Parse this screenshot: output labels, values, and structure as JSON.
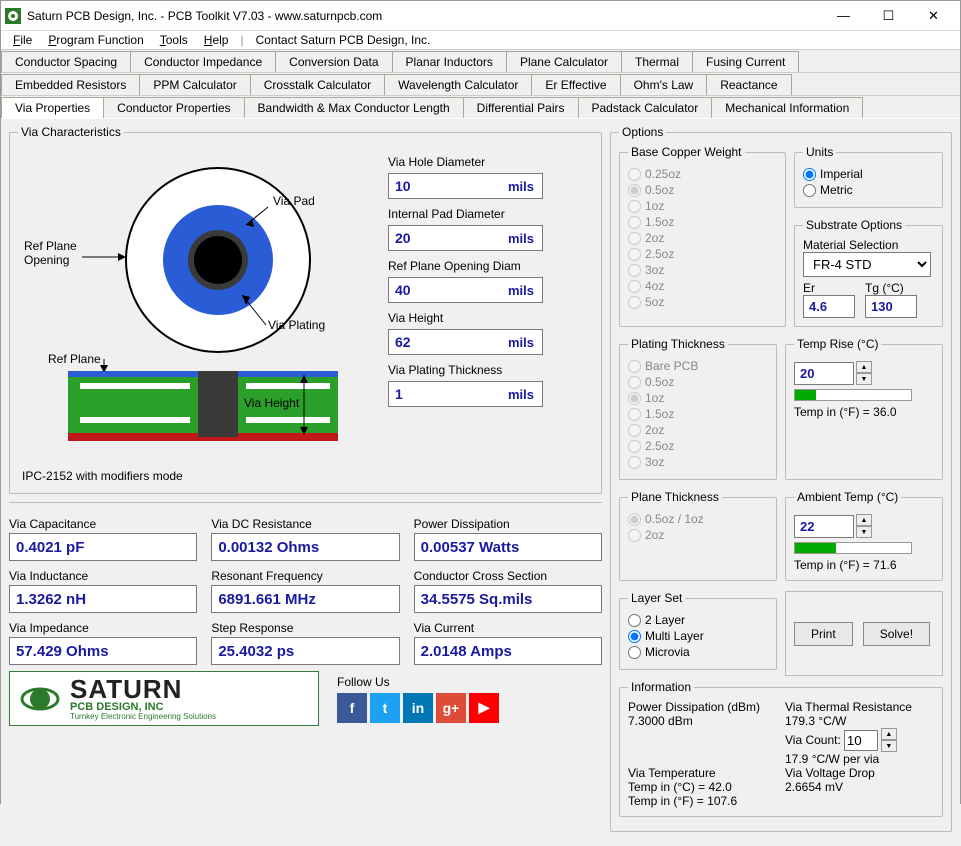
{
  "app": {
    "title": "Saturn PCB Design, Inc. - PCB Toolkit V7.03 - www.saturnpcb.com",
    "menus": [
      "File",
      "Program Function",
      "Tools",
      "Help"
    ],
    "contact": "Contact Saturn PCB Design, Inc."
  },
  "tabs": {
    "row1": [
      "Conductor Spacing",
      "Conductor Impedance",
      "Conversion Data",
      "Planar Inductors",
      "Plane Calculator",
      "Thermal",
      "Fusing Current"
    ],
    "row2": [
      "Embedded Resistors",
      "PPM Calculator",
      "Crosstalk Calculator",
      "Wavelength Calculator",
      "Er Effective",
      "Ohm's Law",
      "Reactance"
    ],
    "row3": [
      "Via Properties",
      "Conductor Properties",
      "Bandwidth & Max Conductor Length",
      "Differential Pairs",
      "Padstack Calculator",
      "Mechanical Information"
    ],
    "active": "Via Properties"
  },
  "characteristics": {
    "legend": "Via Characteristics",
    "diagram": {
      "ref_plane_opening": "Ref Plane\nOpening",
      "via_pad": "Via Pad",
      "via_plating": "Via Plating",
      "ref_plane": "Ref Plane",
      "via_height": "Via Height",
      "colors": {
        "outer": "#ffffff",
        "pad": "#2a5cd6",
        "hole": "#000",
        "board": "#2aa02a",
        "plane": "#c01818"
      }
    },
    "inputs": {
      "via_hole_diameter": {
        "label": "Via Hole Diameter",
        "value": "10",
        "unit": "mils"
      },
      "internal_pad_diameter": {
        "label": "Internal Pad Diameter",
        "value": "20",
        "unit": "mils"
      },
      "ref_plane_opening": {
        "label": "Ref Plane Opening Diam",
        "value": "40",
        "unit": "mils"
      },
      "via_height": {
        "label": "Via Height",
        "value": "62",
        "unit": "mils"
      },
      "via_plating_thickness": {
        "label": "Via Plating Thickness",
        "value": "1",
        "unit": "mils"
      }
    },
    "mode": "IPC-2152 with modifiers mode"
  },
  "results": {
    "via_capacitance": {
      "label": "Via Capacitance",
      "value": "0.4021 pF"
    },
    "via_inductance": {
      "label": "Via Inductance",
      "value": "1.3262 nH"
    },
    "via_impedance": {
      "label": "Via Impedance",
      "value": "57.429 Ohms"
    },
    "via_dc_resistance": {
      "label": "Via DC Resistance",
      "value": "0.00132 Ohms"
    },
    "resonant_frequency": {
      "label": "Resonant Frequency",
      "value": "6891.661 MHz"
    },
    "step_response": {
      "label": "Step Response",
      "value": "25.4032 ps"
    },
    "power_dissipation": {
      "label": "Power Dissipation",
      "value": "0.00537 Watts"
    },
    "conductor_cross_section": {
      "label": "Conductor Cross Section",
      "value": "34.5575 Sq.mils"
    },
    "via_current": {
      "label": "Via Current",
      "value": "2.0148 Amps"
    }
  },
  "options": {
    "legend": "Options",
    "base_copper": {
      "legend": "Base Copper Weight",
      "items": [
        "0.25oz",
        "0.5oz",
        "1oz",
        "1.5oz",
        "2oz",
        "2.5oz",
        "3oz",
        "4oz",
        "5oz"
      ],
      "selected": "0.5oz",
      "disabled": true
    },
    "units": {
      "legend": "Units",
      "items": [
        "Imperial",
        "Metric"
      ],
      "selected": "Imperial"
    },
    "substrate": {
      "legend": "Substrate Options",
      "material_label": "Material Selection",
      "material": "FR-4 STD",
      "er_label": "Er",
      "er": "4.6",
      "tg_label": "Tg (°C)",
      "tg": "130"
    },
    "plating_thickness": {
      "legend": "Plating Thickness",
      "items": [
        "Bare PCB",
        "0.5oz",
        "1oz",
        "1.5oz",
        "2oz",
        "2.5oz",
        "3oz"
      ],
      "selected": "1oz",
      "disabled": true
    },
    "temp_rise": {
      "legend": "Temp Rise (°C)",
      "value": "20",
      "progress_pct": 18,
      "text": "Temp in (°F) = 36.0"
    },
    "ambient_temp": {
      "legend": "Ambient Temp (°C)",
      "value": "22",
      "progress_pct": 35,
      "text": "Temp in (°F) = 71.6"
    },
    "plane_thickness": {
      "legend": "Plane Thickness",
      "items": [
        "0.5oz / 1oz",
        "2oz"
      ],
      "selected": "0.5oz / 1oz",
      "disabled": true
    },
    "layer_set": {
      "legend": "Layer Set",
      "items": [
        "2 Layer",
        "Multi Layer",
        "Microvia"
      ],
      "selected": "Multi Layer"
    },
    "buttons": {
      "print": "Print",
      "solve": "Solve!"
    }
  },
  "information": {
    "legend": "Information",
    "power_diss_dbm_label": "Power Dissipation (dBm)",
    "power_diss_dbm": "7.3000 dBm",
    "via_thermal_res_label": "Via Thermal Resistance",
    "via_thermal_res": "179.3 °C/W",
    "via_count_label": "Via Count:",
    "via_count": "10",
    "per_via": "17.9 °C/W per via",
    "via_temp_label": "Via Temperature",
    "temp_c": "Temp in (°C) = 42.0",
    "temp_f": "Temp in (°F) = 107.6",
    "via_voltage_drop_label": "Via Voltage Drop",
    "via_voltage_drop": "2.6654 mV"
  },
  "logo": {
    "main": "SATURN",
    "sub": "PCB DESIGN, INC",
    "tag": "Turnkey Electronic Engineering Solutions",
    "follow": "Follow Us",
    "social": [
      {
        "name": "facebook",
        "bg": "#3b5998",
        "txt": "f"
      },
      {
        "name": "twitter",
        "bg": "#1da1f2",
        "txt": "t"
      },
      {
        "name": "linkedin",
        "bg": "#0077b5",
        "txt": "in"
      },
      {
        "name": "gplus",
        "bg": "#dd4b39",
        "txt": "g+"
      },
      {
        "name": "youtube",
        "bg": "#ff0000",
        "txt": "▶"
      }
    ]
  }
}
